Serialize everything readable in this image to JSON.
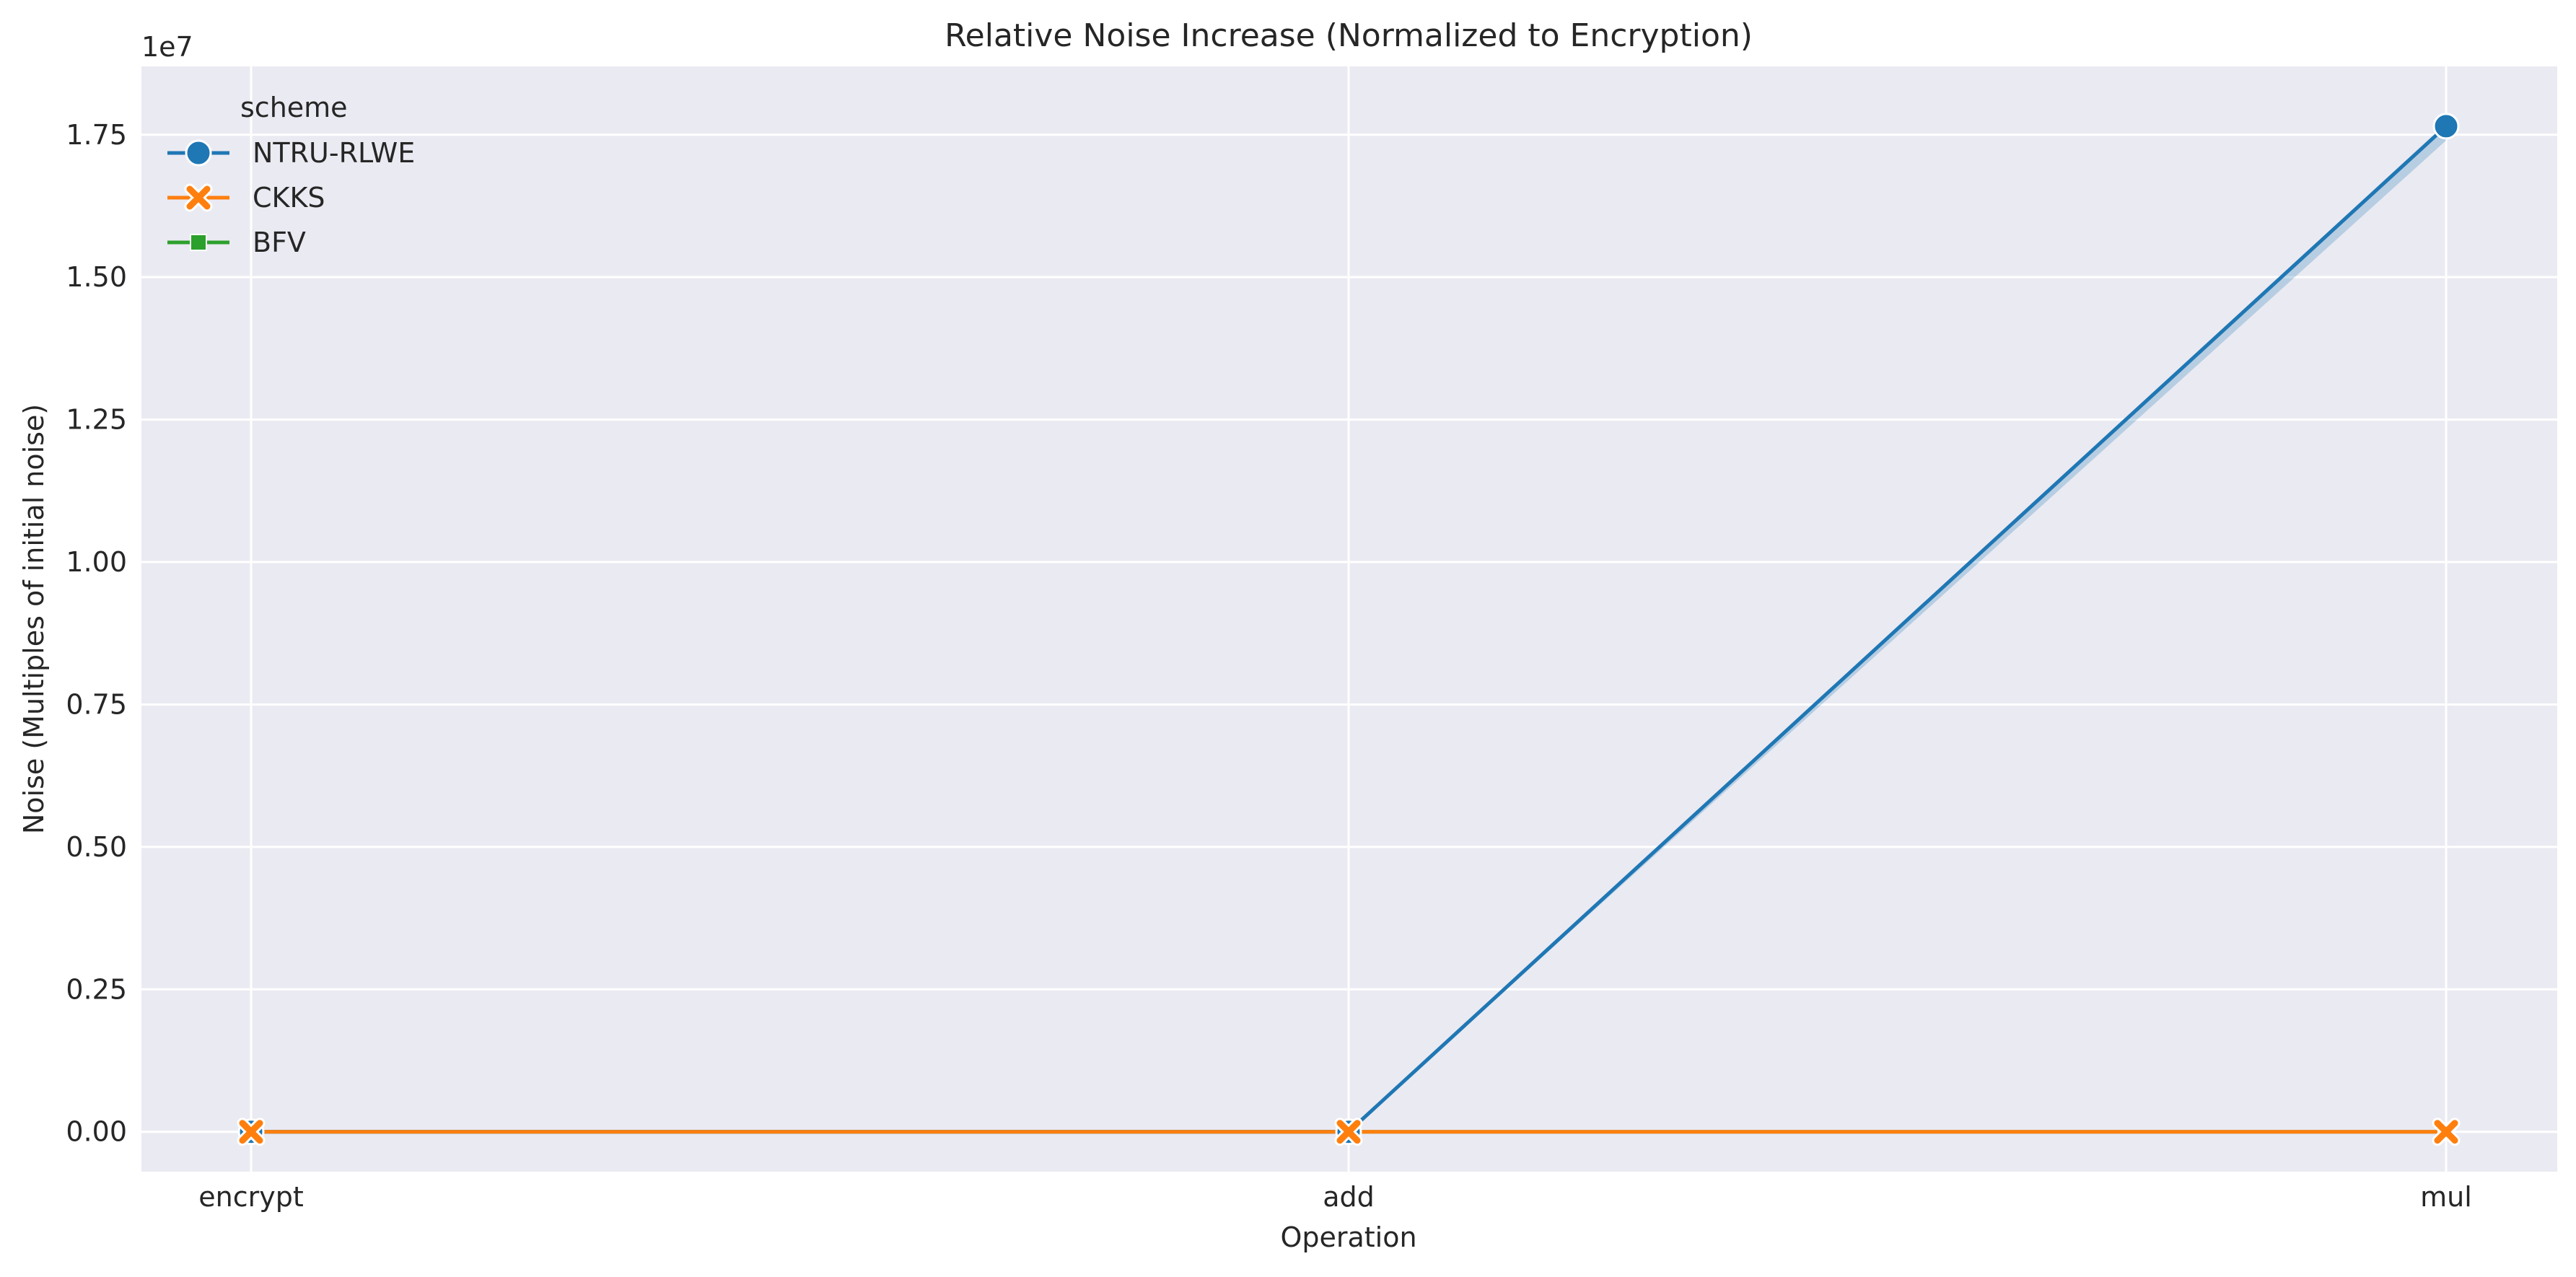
{
  "chart_data": {
    "type": "line",
    "title": "Relative Noise Increase (Normalized to Encryption)",
    "xlabel": "Operation",
    "ylabel": "Noise (Multiples of initial noise)",
    "y_offset_text": "1e7",
    "categories": [
      "encrypt",
      "add",
      "mul"
    ],
    "ylim": [
      -700000,
      18700000
    ],
    "yticks": [
      0,
      2500000,
      5000000,
      7500000,
      10000000,
      12500000,
      15000000,
      17500000
    ],
    "ytick_labels": [
      "0.00",
      "0.25",
      "0.50",
      "0.75",
      "1.00",
      "1.25",
      "1.50",
      "1.75"
    ],
    "grid": true,
    "legend": {
      "title": "scheme",
      "placement": "top-left"
    },
    "series": [
      {
        "name": "NTRU-RLWE",
        "color": "#1f77b4",
        "marker": "circle",
        "values": [
          1,
          1,
          17650000
        ],
        "ci_band_at_mul": [
          17400000,
          17700000
        ]
      },
      {
        "name": "CKKS",
        "color": "#ff7f0e",
        "marker": "x",
        "values": [
          1,
          1,
          1
        ]
      },
      {
        "name": "BFV",
        "color": "#2ca02c",
        "marker": "square",
        "values": [
          1,
          1,
          1
        ]
      }
    ]
  }
}
